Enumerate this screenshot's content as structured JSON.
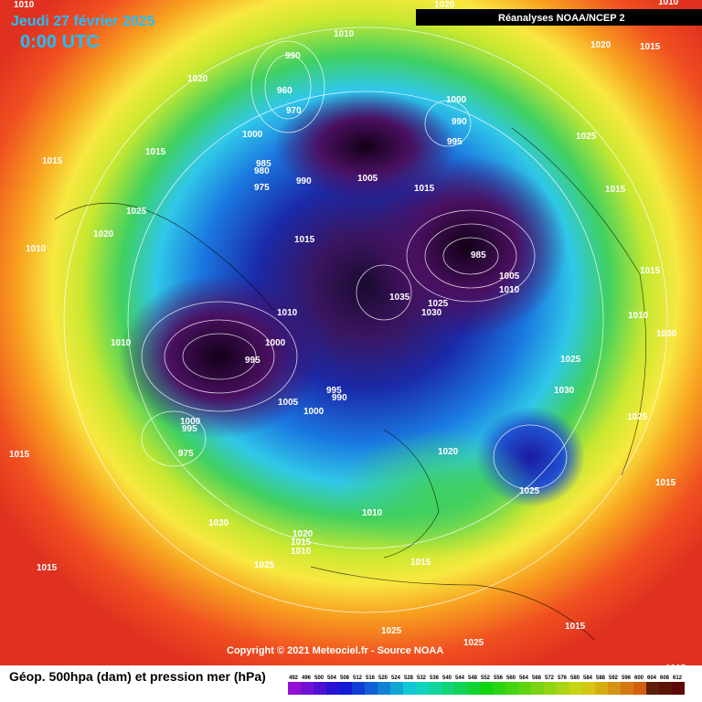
{
  "header": {
    "date": "Jeudi 27 février 2025",
    "time": "0:00 UTC",
    "source_tag": "Réanalyses NOAA/NCEP 2"
  },
  "footer": {
    "copyright": "Copyright © 2021 Meteociel.fr - Source NOAA",
    "legend_title": "Géop. 500hpa (dam) et pression mer (hPa)"
  },
  "scale": {
    "labels": [
      492,
      496,
      500,
      504,
      508,
      512,
      516,
      520,
      524,
      528,
      532,
      536,
      540,
      544,
      548,
      552,
      556,
      560,
      564,
      568,
      572,
      576,
      580,
      584,
      588,
      592,
      596,
      600,
      604,
      608,
      612
    ]
  },
  "pressure_labels": [
    1010,
    1020,
    1010,
    1010,
    1020,
    1015,
    1020,
    990,
    960,
    970,
    1000,
    990,
    995,
    1000,
    1025,
    1015,
    1015,
    985,
    980,
    975,
    990,
    1005,
    1015,
    1015,
    1025,
    1020,
    1015,
    1010,
    985,
    1005,
    1010,
    1015,
    1035,
    1025,
    1030,
    1010,
    1010,
    1030,
    1010,
    1000,
    995,
    1025,
    1030,
    1005,
    995,
    990,
    1000,
    1025,
    1000,
    995,
    975,
    1015,
    1020,
    1015,
    1025,
    1010,
    1030,
    1020,
    1015,
    1010,
    1025,
    1015,
    1015,
    1025,
    1025,
    1015,
    1015
  ]
}
